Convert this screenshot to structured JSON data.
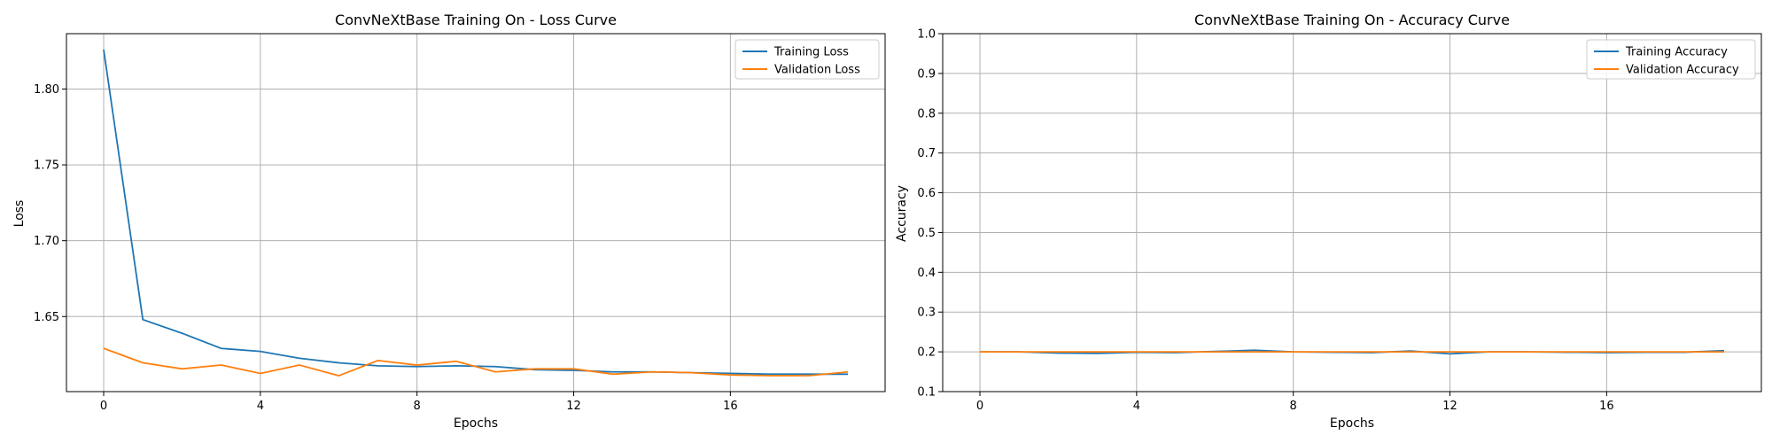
{
  "chart_data": [
    {
      "type": "line",
      "title": "ConvNeXtBase Training On - Loss Curve",
      "xlabel": "Epochs",
      "ylabel": "Loss",
      "xlim": [
        -0.95,
        19.95
      ],
      "ylim": [
        1.6005,
        1.8365
      ],
      "xticks": [
        0,
        4,
        8,
        12,
        16
      ],
      "yticks": [
        1.65,
        1.7,
        1.75,
        1.8
      ],
      "ytick_labels": [
        "1.65",
        "1.70",
        "1.75",
        "1.80"
      ],
      "grid": true,
      "legend_position": "upper right",
      "x": [
        0,
        1,
        2,
        3,
        4,
        5,
        6,
        7,
        8,
        9,
        10,
        11,
        12,
        13,
        14,
        15,
        16,
        17,
        18,
        19
      ],
      "series": [
        {
          "name": "Training Loss",
          "color": "#1f77b4",
          "values": [
            1.826,
            1.648,
            1.639,
            1.629,
            1.627,
            1.6225,
            1.6195,
            1.6175,
            1.617,
            1.6175,
            1.617,
            1.615,
            1.6145,
            1.6135,
            1.6135,
            1.613,
            1.6125,
            1.612,
            1.612,
            1.612
          ]
        },
        {
          "name": "Validation Loss",
          "color": "#ff7f0e",
          "values": [
            1.629,
            1.6195,
            1.6155,
            1.618,
            1.6125,
            1.618,
            1.611,
            1.621,
            1.618,
            1.6205,
            1.6135,
            1.6155,
            1.6155,
            1.612,
            1.6135,
            1.613,
            1.6115,
            1.611,
            1.611,
            1.6135
          ]
        }
      ]
    },
    {
      "type": "line",
      "title": "ConvNeXtBase Training On - Accuracy Curve",
      "xlabel": "Epochs",
      "ylabel": "Accuracy",
      "xlim": [
        -0.95,
        19.95
      ],
      "ylim": [
        0.1,
        1.0
      ],
      "xticks": [
        0,
        4,
        8,
        12,
        16
      ],
      "yticks": [
        0.1,
        0.2,
        0.3,
        0.4,
        0.5,
        0.6,
        0.7,
        0.8,
        0.9,
        1.0
      ],
      "ytick_labels": [
        "0.1",
        "0.2",
        "0.3",
        "0.4",
        "0.5",
        "0.6",
        "0.7",
        "0.8",
        "0.9",
        "1.0"
      ],
      "grid": true,
      "legend_position": "upper right",
      "x": [
        0,
        1,
        2,
        3,
        4,
        5,
        6,
        7,
        8,
        9,
        10,
        11,
        12,
        13,
        14,
        15,
        16,
        17,
        18,
        19
      ],
      "series": [
        {
          "name": "Training Accuracy",
          "color": "#1f77b4",
          "values": [
            0.2,
            0.2,
            0.197,
            0.196,
            0.199,
            0.198,
            0.201,
            0.204,
            0.2,
            0.199,
            0.198,
            0.202,
            0.195,
            0.2,
            0.2,
            0.199,
            0.198,
            0.199,
            0.199,
            0.203
          ]
        },
        {
          "name": "Validation Accuracy",
          "color": "#ff7f0e",
          "values": [
            0.2,
            0.2,
            0.2,
            0.2,
            0.2,
            0.2,
            0.2,
            0.2,
            0.2,
            0.2,
            0.2,
            0.2,
            0.2,
            0.2,
            0.2,
            0.2,
            0.2,
            0.2,
            0.2,
            0.2
          ]
        }
      ]
    }
  ]
}
